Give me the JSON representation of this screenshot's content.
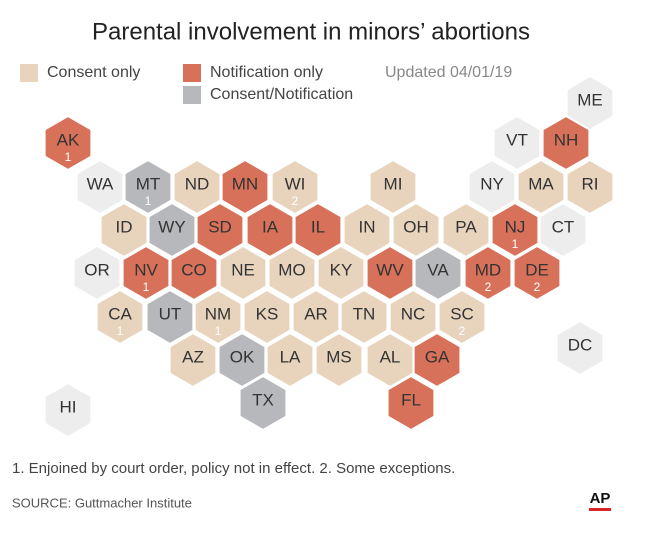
{
  "header": {
    "title": "Parental involvement in minors’ abortions",
    "updated": "Updated 04/01/19"
  },
  "legend": [
    {
      "label": "Consent only",
      "color": "#e8d4bd"
    },
    {
      "label": "Notification only",
      "color": "#d8715a"
    },
    {
      "label": "Consent/Notification",
      "color": "#b7b8bb"
    }
  ],
  "states": [
    {
      "label": "ME",
      "color": "#ededee"
    },
    {
      "label": "AK",
      "color": "#d8715a",
      "note": "1"
    },
    {
      "label": "VT",
      "color": "#ededee"
    },
    {
      "label": "NH",
      "color": "#d8715a"
    },
    {
      "label": "WA",
      "color": "#ededee"
    },
    {
      "label": "MT",
      "color": "#b7b8bb",
      "note": "1"
    },
    {
      "label": "ND",
      "color": "#e8d4bd"
    },
    {
      "label": "MN",
      "color": "#d8715a"
    },
    {
      "label": "WI",
      "color": "#e8d4bd",
      "note": "2"
    },
    {
      "label": "MI",
      "color": "#e8d4bd"
    },
    {
      "label": "NY",
      "color": "#ededee"
    },
    {
      "label": "MA",
      "color": "#e8d4bd"
    },
    {
      "label": "RI",
      "color": "#e8d4bd"
    },
    {
      "label": "ID",
      "color": "#e8d4bd"
    },
    {
      "label": "WY",
      "color": "#b7b8bb"
    },
    {
      "label": "SD",
      "color": "#d8715a"
    },
    {
      "label": "IA",
      "color": "#d8715a"
    },
    {
      "label": "IL",
      "color": "#d8715a"
    },
    {
      "label": "IN",
      "color": "#e8d4bd"
    },
    {
      "label": "OH",
      "color": "#e8d4bd"
    },
    {
      "label": "PA",
      "color": "#e8d4bd"
    },
    {
      "label": "NJ",
      "color": "#d8715a",
      "note": "1"
    },
    {
      "label": "CT",
      "color": "#ededee"
    },
    {
      "label": "OR",
      "color": "#ededee"
    },
    {
      "label": "NV",
      "color": "#d8715a",
      "note": "1"
    },
    {
      "label": "CO",
      "color": "#d8715a"
    },
    {
      "label": "NE",
      "color": "#e8d4bd"
    },
    {
      "label": "MO",
      "color": "#e8d4bd"
    },
    {
      "label": "KY",
      "color": "#e8d4bd"
    },
    {
      "label": "WV",
      "color": "#d8715a"
    },
    {
      "label": "VA",
      "color": "#b7b8bb"
    },
    {
      "label": "MD",
      "color": "#d8715a",
      "note": "2"
    },
    {
      "label": "DE",
      "color": "#d8715a",
      "note": "2"
    },
    {
      "label": "CA",
      "color": "#e8d4bd",
      "note": "1"
    },
    {
      "label": "UT",
      "color": "#b7b8bb"
    },
    {
      "label": "NM",
      "color": "#e8d4bd",
      "note": "1"
    },
    {
      "label": "KS",
      "color": "#e8d4bd"
    },
    {
      "label": "AR",
      "color": "#e8d4bd"
    },
    {
      "label": "TN",
      "color": "#e8d4bd"
    },
    {
      "label": "NC",
      "color": "#e8d4bd"
    },
    {
      "label": "SC",
      "color": "#e8d4bd",
      "note": "2"
    },
    {
      "label": "AZ",
      "color": "#e8d4bd"
    },
    {
      "label": "OK",
      "color": "#b7b8bb"
    },
    {
      "label": "LA",
      "color": "#e8d4bd"
    },
    {
      "label": "MS",
      "color": "#e8d4bd"
    },
    {
      "label": "AL",
      "color": "#e8d4bd"
    },
    {
      "label": "GA",
      "color": "#d8715a"
    },
    {
      "label": "DC",
      "color": "#ededee"
    },
    {
      "label": "TX",
      "color": "#b7b8bb"
    },
    {
      "label": "FL",
      "color": "#d8715a"
    },
    {
      "label": "HI",
      "color": "#ededee"
    }
  ],
  "footer": {
    "footnote": "1. Enjoined by court order, policy not in effect. 2. Some exceptions.",
    "source": "SOURCE: Guttmacher Institute",
    "logo": "AP"
  }
}
